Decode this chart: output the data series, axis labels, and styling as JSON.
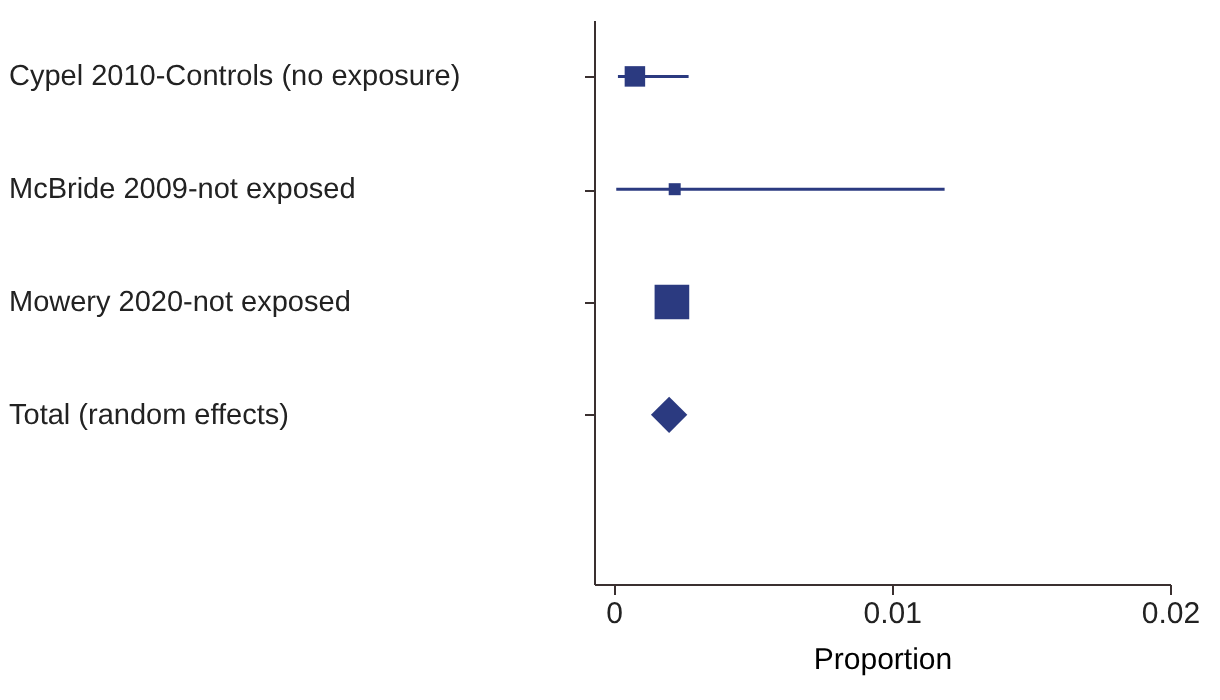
{
  "chart_data": {
    "type": "scatter",
    "orientation": "horizontal",
    "xlabel": "Proportion",
    "categories": [
      "Cypel 2010-Controls (no exposure)",
      "McBride 2009-not exposed",
      "Mowery 2020-not exposed",
      "Total (random effects)"
    ],
    "series": [
      {
        "marker": "square",
        "color": "#2b3a80",
        "values": [
          0.00077,
          0.0022,
          0.0021,
          null
        ],
        "errors": [
          [
            0.00016,
            0.0027
          ],
          [
            0.0001,
            0.0119
          ],
          null,
          null
        ],
        "sizes": [
          0.35,
          0.12,
          1,
          null
        ]
      },
      {
        "marker": "diamond",
        "color": "#2b3a80",
        "values": [
          null,
          null,
          null,
          0.002
        ]
      }
    ],
    "xlim": [
      -0.0007,
      0.02
    ],
    "xticks": [
      0,
      0.01,
      0.02
    ],
    "grid": false
  }
}
